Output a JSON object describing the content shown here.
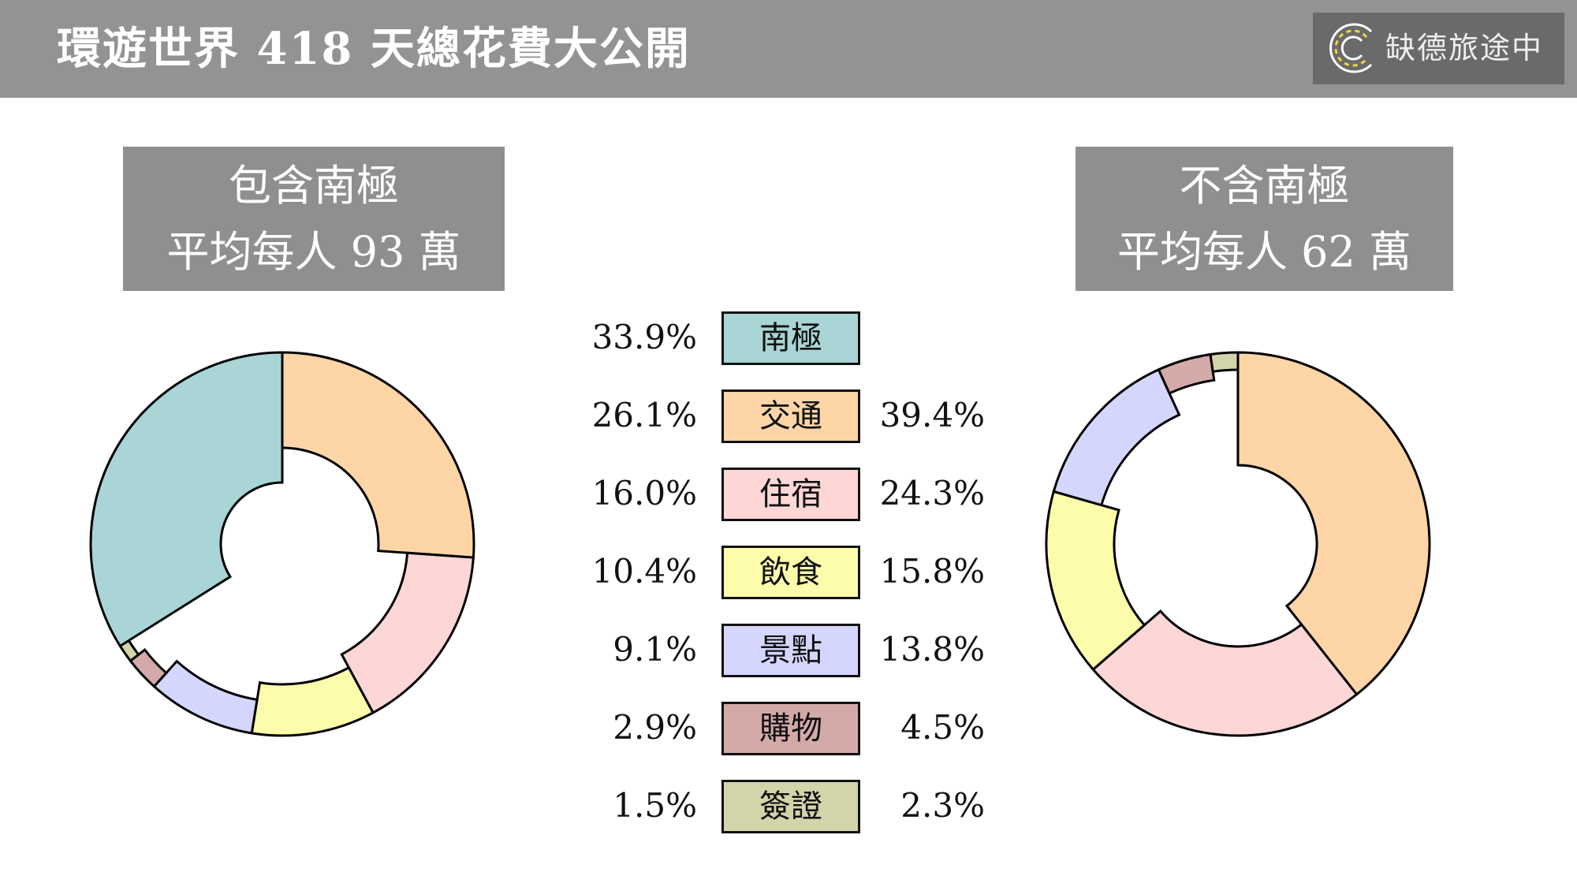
{
  "header": {
    "title": "環遊世界 418 天總花費大公開",
    "logo_text": "缺德旅途中",
    "logo_icon": "road-c-icon"
  },
  "captions": {
    "left": {
      "line1": "包含南極",
      "line2": "平均每人 93 萬"
    },
    "right": {
      "line1": "不含南極",
      "line2": "平均每人 62 萬"
    }
  },
  "legend": [
    {
      "label": "南極",
      "left": "33.9%",
      "right": null,
      "color": "#a9d5d6"
    },
    {
      "label": "交通",
      "left": "26.1%",
      "right": "39.4%",
      "color": "#fed5a7"
    },
    {
      "label": "住宿",
      "left": "16.0%",
      "right": "24.3%",
      "color": "#fdd6d6"
    },
    {
      "label": "飲食",
      "left": "10.4%",
      "right": "15.8%",
      "color": "#fdfcab"
    },
    {
      "label": "景點",
      "left": "9.1%",
      "right": "13.8%",
      "color": "#d5d6fd"
    },
    {
      "label": "購物",
      "left": "2.9%",
      "right": "4.5%",
      "color": "#d4aaa9"
    },
    {
      "label": "簽證",
      "left": "1.5%",
      "right": "2.3%",
      "color": "#d4d4ab"
    }
  ],
  "chart_data": [
    {
      "type": "pie",
      "title": "包含南極 平均每人 93 萬",
      "categories": [
        "交通",
        "住宿",
        "飲食",
        "景點",
        "購物",
        "簽證",
        "南極"
      ],
      "values": [
        26.1,
        16.0,
        10.4,
        9.1,
        2.9,
        1.5,
        33.9
      ],
      "colors": [
        "#fed5a7",
        "#fdd6d6",
        "#fdfcab",
        "#d5d6fd",
        "#d4aaa9",
        "#d4d4ab",
        "#a9d5d6"
      ]
    },
    {
      "type": "pie",
      "title": "不含南極 平均每人 62 萬",
      "categories": [
        "交通",
        "住宿",
        "飲食",
        "景點",
        "購物",
        "簽證"
      ],
      "values": [
        39.4,
        24.3,
        15.8,
        13.8,
        4.5,
        2.3
      ],
      "colors": [
        "#fed5a7",
        "#fdd6d6",
        "#fdfcab",
        "#d5d6fd",
        "#d4aaa9",
        "#d4d4ab"
      ]
    }
  ]
}
